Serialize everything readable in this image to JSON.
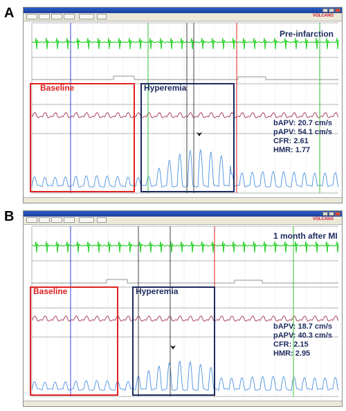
{
  "panels": [
    {
      "letter": "A",
      "condition": "Pre-infarction",
      "baseline_label": "Baseline",
      "hyperemia_label": "Hyperemia",
      "metrics": {
        "bapv": "bAPV: 20.7 cm/s",
        "papv": "pAPV: 54.1 cm/s",
        "cfr": "CFR: 2.61",
        "hmr": "HMR: 1.77"
      },
      "brand": "VOLCANO"
    },
    {
      "letter": "B",
      "condition": "1 month after MI",
      "baseline_label": "Baseline",
      "hyperemia_label": "Hyperemia",
      "metrics": {
        "bapv": "bAPV: 18.7 cm/s",
        "papv": "pAPV: 40.3 cm/s",
        "cfr": "CFR: 2.15",
        "hmr": "HMR: 2.95"
      },
      "brand": "VOLCANO"
    }
  ],
  "colors": {
    "ecg": "#2fd12f",
    "pressure": "#a0304a",
    "velocity": "#4a90e0",
    "baseline_box": "#e02020",
    "hyperemia_box": "#1c2a5e",
    "marker_blue": "#3040d0",
    "marker_red": "#e02020",
    "marker_green": "#30c030",
    "marker_dark": "#404040"
  },
  "icons": [
    "minimize-icon",
    "maximize-icon",
    "close-icon",
    "peak-arrow-icon"
  ]
}
